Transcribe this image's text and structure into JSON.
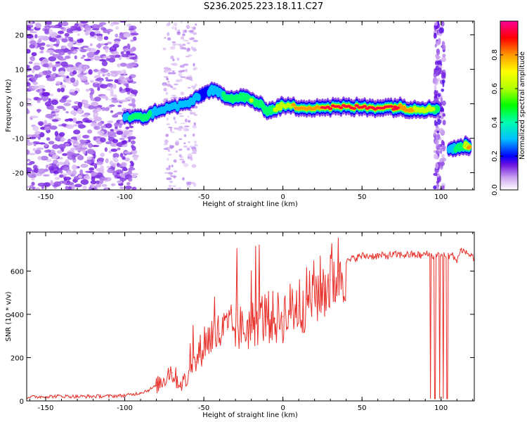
{
  "title": "S236.2025.223.18.11.C27",
  "chart_data": [
    {
      "type": "heatmap",
      "xlabel": "Height of straight line (km)",
      "ylabel": "Frequency (Hz)",
      "xlim": [
        -162,
        121
      ],
      "ylim": [
        -25,
        24
      ],
      "xticks": [
        -150,
        -100,
        -50,
        0,
        50,
        100
      ],
      "yticks": [
        -20,
        -10,
        0,
        10,
        20
      ],
      "colorbar": {
        "label": "Normalized spectral amplitude",
        "range": [
          0.0,
          1.0
        ],
        "ticks": [
          0.0,
          0.2,
          0.4,
          0.6,
          0.8
        ],
        "tick_labels": [
          "0.0",
          "0.2",
          "0.4",
          "0.6",
          "0.8"
        ]
      },
      "ridge": {
        "x": [
          -100,
          -90,
          -85,
          -80,
          -70,
          -60,
          -55,
          -50,
          -45,
          -40,
          -35,
          -30,
          -25,
          -20,
          -15,
          -10,
          -5,
          0,
          10,
          20,
          30,
          40,
          50,
          60,
          70,
          75,
          80,
          85,
          90,
          95,
          98
        ],
        "y": [
          -4,
          -4,
          -3.5,
          -2,
          -1,
          0,
          1.5,
          3,
          4,
          3,
          2,
          1.5,
          2,
          1,
          0,
          -2,
          -1.5,
          -0.5,
          -1,
          -1,
          -1,
          -1,
          -1,
          -1,
          -1,
          -1,
          -1.5,
          -1.5,
          -1.5,
          -1.5,
          -1.5
        ],
        "amplitude": [
          0.4,
          0.5,
          0.45,
          0.35,
          0.3,
          0.3,
          0.3,
          0.25,
          0.3,
          0.4,
          0.45,
          0.5,
          0.55,
          0.6,
          0.55,
          0.5,
          0.6,
          0.75,
          0.8,
          0.9,
          0.95,
          0.95,
          0.95,
          0.95,
          0.95,
          0.9,
          0.8,
          0.75,
          0.7,
          0.6,
          0.5
        ]
      },
      "secondary_feature": {
        "x": [
          105,
          110,
          115,
          118
        ],
        "y": [
          -13,
          -13,
          -12,
          -12.5
        ],
        "amplitude": [
          0.3,
          0.45,
          0.6,
          0.85
        ]
      }
    },
    {
      "type": "line",
      "xlabel": "Height of straight line (km)",
      "ylabel": "SNR (10 * v/v)",
      "xlim": [
        -162,
        121
      ],
      "ylim": [
        0,
        780
      ],
      "xticks": [
        -150,
        -100,
        -50,
        0,
        50,
        100
      ],
      "yticks": [
        0,
        200,
        400,
        600
      ],
      "line_color": "#e8302a",
      "series": [
        {
          "name": "SNR",
          "x": [
            -162,
            -150,
            -140,
            -130,
            -120,
            -110,
            -100,
            -95,
            -90,
            -85,
            -80,
            -75,
            -72,
            -70,
            -65,
            -60,
            -55,
            -50,
            -45,
            -40,
            -35,
            -30,
            -25,
            -20,
            -15,
            -10,
            -5,
            0,
            5,
            10,
            15,
            20,
            25,
            30,
            35,
            40,
            45,
            50,
            55,
            60,
            65,
            70,
            75,
            80,
            85,
            88,
            90,
            92,
            95,
            100,
            105,
            108,
            110,
            112,
            115,
            121
          ],
          "y": [
            18,
            20,
            22,
            20,
            21,
            22,
            25,
            30,
            38,
            50,
            70,
            100,
            140,
            130,
            80,
            100,
            180,
            270,
            300,
            310,
            330,
            340,
            330,
            350,
            380,
            390,
            380,
            390,
            420,
            440,
            470,
            500,
            520,
            560,
            600,
            640,
            660,
            670,
            670,
            670,
            670,
            675,
            675,
            675,
            675,
            670,
            680,
            675,
            670,
            670,
            670,
            670,
            640,
            700,
            690,
            660
          ]
        }
      ]
    }
  ]
}
